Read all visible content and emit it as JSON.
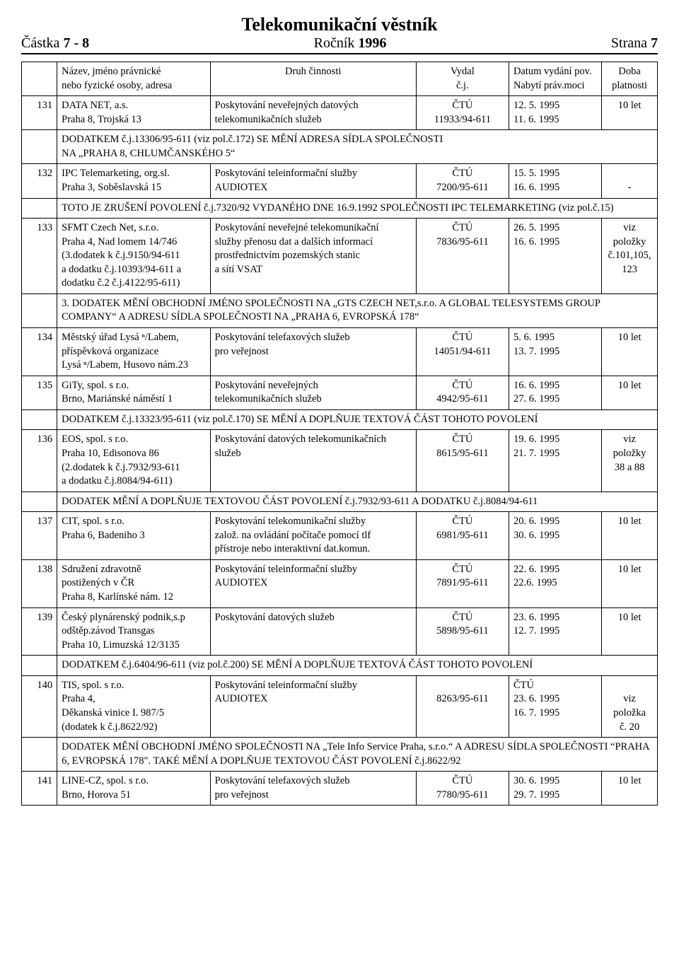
{
  "header": {
    "title": "Telekomunikační věstník",
    "left_label": "Částka",
    "left_value": "7 - 8",
    "center_label": "Ročník",
    "center_value": "1996",
    "right_label": "Strana",
    "right_value": "7"
  },
  "columns": {
    "name_l1": "Název, jméno právnické",
    "name_l2": "nebo fyzické osoby, adresa",
    "activity": "Druh činnosti",
    "issued_l1": "Vydal",
    "issued_l2": "č.j.",
    "date_l1": "Datum vydání pov.",
    "date_l2": "Nabytí práv.moci",
    "valid_l1": "Doba",
    "valid_l2": "platnosti"
  },
  "rows": [
    {
      "num": "131",
      "name": "DATA NET, a.s.\nPraha 8, Trojská 13",
      "activity": "Poskytování neveřejných datových\ntelekomunikačních služeb",
      "issued": "ČTÚ\n11933/94-611",
      "dates": "12. 5. 1995\n11. 6. 1995",
      "valid": "10 let",
      "note": "DODATKEM č.j.13306/95-611 (viz pol.č.172) SE MĚNÍ ADRESA SÍDLA SPOLEČNOSTI\nNA „PRAHA 8, CHLUMČANSKÉHO 5“"
    },
    {
      "num": "132",
      "name": "IPC Telemarketing, org.sl.\nPraha 3, Soběslavská 15",
      "activity": "Poskytování teleinformační služby\nAUDIOTEX",
      "issued": "ČTÚ\n7200/95-611",
      "dates": "15. 5. 1995\n16. 6. 1995",
      "valid": "\n-",
      "note": "TOTO JE ZRUŠENÍ POVOLENÍ č.j.7320/92 VYDANÉHO DNE 16.9.1992 SPOLEČNOSTI IPC TELEMARKETING (viz pol.č.15)"
    },
    {
      "num": "133",
      "name": "SFMT Czech Net, s.r.o.\nPraha 4, Nad lomem 14/746\n(3.dodatek k č.j.9150/94-611\na dodatku č.j.10393/94-611 a\ndodatku č.2 č.j.4122/95-611)",
      "activity": "Poskytování neveřejné telekomunikační\nslužby přenosu dat a dalších informací\nprostřednictvím pozemských stanic\na sítí VSAT",
      "issued": "ČTÚ\n7836/95-611",
      "dates": "26. 5. 1995\n16. 6. 1995",
      "valid": "viz\npoložky\nč.101,105,\n123",
      "note": "3. DODATEK MĚNÍ OBCHODNÍ JMÉNO SPOLEČNOSTI NA „GTS CZECH NET,s.r.o. A GLOBAL TELESYSTEMS GROUP COMPANY“ A ADRESU SÍDLA SPOLEČNOSTI NA „PRAHA 6, EVROPSKÁ 178“"
    },
    {
      "num": "134",
      "name": "Městský úřad Lysá ⁿ/Labem,\npříspěvková organizace\nLysá ⁿ/Labem, Husovo nám.23",
      "activity": "Poskytování telefaxových služeb\npro veřejnost",
      "issued": "ČTÚ\n14051/94-611",
      "dates": "5. 6. 1995\n13. 7. 1995",
      "valid": "10 let"
    },
    {
      "num": "135",
      "name": "GiTy, spol. s r.o.\nBrno, Mariánské náměstí 1",
      "activity": "Poskytování neveřejných\ntelekomunikačních služeb",
      "issued": "ČTÚ\n4942/95-611",
      "dates": "16. 6. 1995\n27. 6. 1995",
      "valid": "10 let",
      "note": "DODATKEM č.j.13323/95-611 (viz pol.č.170) SE MĚNÍ A DOPLŇUJE TEXTOVÁ ČÁST TOHOTO POVOLENÍ"
    },
    {
      "num": "136",
      "name": "EOS, spol. s r.o.\nPraha 10, Edisonova 86\n(2.dodatek k č.j.7932/93-611\na dodatku č.j.8084/94-611)",
      "activity": "Poskytování datových telekomunikačních\nslužeb",
      "issued": "ČTÚ\n8615/95-611",
      "dates": "19. 6. 1995\n21. 7. 1995",
      "valid": "viz\npoložky\n38 a 88",
      "note": "DODATEK MĚNÍ A DOPLŇUJE TEXTOVOU ČÁST POVOLENÍ č.j.7932/93-611 A DODATKU č.j.8084/94-611"
    },
    {
      "num": "137",
      "name": "CIT, spol. s r.o.\nPraha 6, Badeniho 3",
      "activity": "Poskytování telekomunikační služby\nzalož. na ovládání počítače pomocí tlf\npřístroje nebo interaktivní dat.komun.",
      "issued": "ČTÚ\n6981/95-611",
      "dates": "20. 6. 1995\n30. 6. 1995",
      "valid": "10 let"
    },
    {
      "num": "138",
      "name": "Sdružení zdravotně\npostižených v ČR\nPraha 8, Karlínské nám. 12",
      "activity": "Poskytování teleinformační služby\nAUDIOTEX",
      "issued": "ČTÚ\n7891/95-611",
      "dates": "22. 6. 1995\n22.6. 1995",
      "valid": "10 let"
    },
    {
      "num": "139",
      "name": "Český plynárenský podnik,s.p\nodštěp.závod Transgas\nPraha 10, Limuzská 12/3135",
      "activity": "Poskytování datových služeb",
      "issued": "ČTÚ\n5898/95-611",
      "dates": "23. 6. 1995\n12. 7. 1995",
      "valid": "10 let",
      "note": "DODATKEM č.j.6404/96-611 (viz pol.č.200) SE MĚNÍ A DOPLŇUJE TEXTOVÁ ČÁST TOHOTO POVOLENÍ"
    },
    {
      "num": "140",
      "name": "TIS, spol. s r.o.\nPraha 4,\nDěkanská vinice I. 987/5\n(dodatek k č.j.8622/92)",
      "activity": "Poskytování teleinformační služby\nAUDIOTEX",
      "issued": "\n8263/95-611",
      "dates": "ČTÚ\n23. 6. 1995\n16. 7. 1995",
      "valid": "\nviz\npoložka\nč. 20",
      "note": "DODATEK MĚNÍ OBCHODNÍ JMÉNO SPOLEČNOSTI NA „Tele Info Service Praha, s.r.o.“ A ADRESU SÍDLA SPOLEČNOSTI “PRAHA 6, EVROPSKÁ 178\". TAKÉ MĚNÍ A DOPLŇUJE TEXTOVOU ČÁST POVOLENÍ č.j.8622/92"
    },
    {
      "num": "141",
      "name": "LINE-CZ, spol. s r.o.\nBrno, Horova 51",
      "activity": "Poskytování telefaxových služeb\npro veřejnost",
      "issued": "ČTÚ\n7780/95-611",
      "dates": "30. 6. 1995\n29. 7. 1995",
      "valid": "10 let"
    }
  ]
}
